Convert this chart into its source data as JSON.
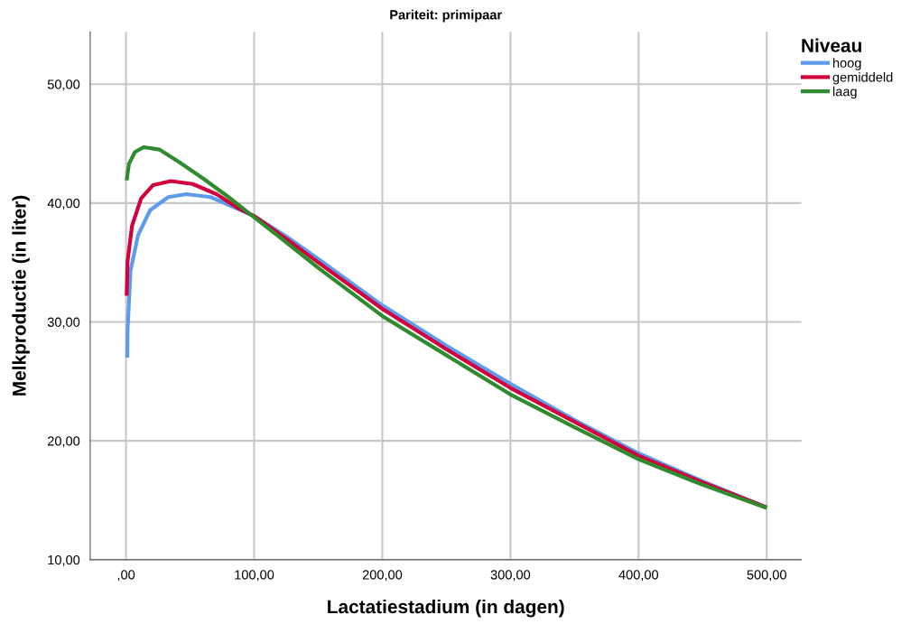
{
  "chart_data": {
    "type": "line",
    "title": "Pariteit: primipaar",
    "xlabel": "Lactatiestadium (in dagen)",
    "ylabel": "Melkproductie (in liter)",
    "legend_title": "Niveau",
    "legend": "right",
    "grid": true,
    "marker": "none",
    "line_style": "solid",
    "xlim": [
      -28,
      527
    ],
    "ylim": [
      10,
      54.4
    ],
    "xticks": [
      {
        "value": 0,
        "label": ",00"
      },
      {
        "value": 100,
        "label": "100,00"
      },
      {
        "value": 200,
        "label": "200,00"
      },
      {
        "value": 300,
        "label": "300,00"
      },
      {
        "value": 400,
        "label": "400,00"
      },
      {
        "value": 500,
        "label": "500,00"
      }
    ],
    "yticks": [
      {
        "value": 10,
        "label": "10,00"
      },
      {
        "value": 20,
        "label": "20,00"
      },
      {
        "value": 30,
        "label": "30,00"
      },
      {
        "value": 40,
        "label": "40,00"
      },
      {
        "value": 50,
        "label": "50,00"
      }
    ],
    "series": [
      {
        "name": "hoog",
        "color": "#5d9cec",
        "x": [
          1,
          1.2,
          3.5,
          9.4,
          18.8,
          33,
          47,
          66,
          82,
          100,
          125,
          150,
          200,
          250,
          300,
          350,
          400,
          450,
          500
        ],
        "values": [
          27.0,
          29.3,
          34.3,
          37.3,
          39.4,
          40.5,
          40.75,
          40.5,
          39.75,
          38.9,
          37.2,
          35.3,
          31.4,
          28.0,
          24.8,
          21.75,
          18.95,
          16.6,
          14.4
        ]
      },
      {
        "name": "gemiddeld",
        "color": "#d2003c",
        "x": [
          0.5,
          1.2,
          4.7,
          11.8,
          21,
          35,
          52,
          70.6,
          87,
          100,
          125,
          150,
          200,
          250,
          300,
          350,
          400,
          450,
          500
        ],
        "values": [
          32.2,
          35.1,
          38.1,
          40.4,
          41.5,
          41.85,
          41.6,
          40.75,
          39.6,
          38.9,
          37.0,
          35.0,
          31.1,
          27.7,
          24.45,
          21.6,
          18.75,
          16.5,
          14.4
        ]
      },
      {
        "name": "laag",
        "color": "#2e8b2e",
        "x": [
          0.5,
          2.3,
          7,
          14,
          26,
          42,
          61,
          80,
          100,
          125,
          150,
          200,
          250,
          300,
          350,
          400,
          450,
          500
        ],
        "values": [
          41.9,
          43.3,
          44.3,
          44.7,
          44.5,
          43.4,
          42.0,
          40.5,
          38.8,
          36.7,
          34.55,
          30.5,
          27.2,
          23.9,
          21.15,
          18.45,
          16.3,
          14.35
        ]
      }
    ]
  }
}
